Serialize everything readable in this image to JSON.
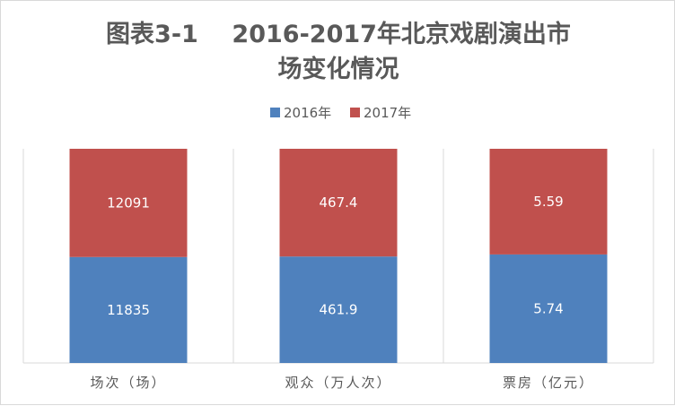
{
  "chart_data": {
    "type": "bar",
    "stacked": true,
    "percent_stacked": true,
    "title_lines": [
      "图表3-1    2016-2017年北京戏剧演出市",
      "场变化情况"
    ],
    "categories": [
      "场次（场）",
      "观众（万人次）",
      "票房（亿元）"
    ],
    "series": [
      {
        "name": "2016年",
        "color": "#4f81bd",
        "values": [
          11835,
          461.9,
          5.74
        ],
        "labels": [
          "11835",
          "461.9",
          "5.74"
        ]
      },
      {
        "name": "2017年",
        "color": "#c0504d",
        "values": [
          12091,
          467.4,
          5.59
        ],
        "labels": [
          "12091",
          "467.4",
          "5.59"
        ]
      }
    ],
    "legend_position": "top",
    "gridlines": "vertical-category-separators"
  }
}
